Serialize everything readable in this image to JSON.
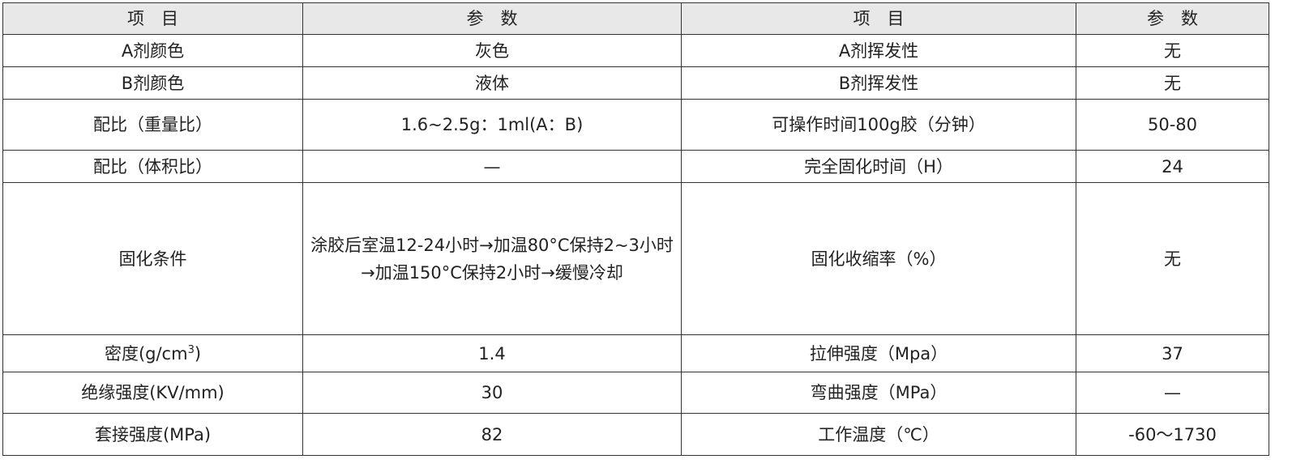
{
  "header": [
    "项　目",
    "参　数",
    "项　目",
    "参　数"
  ],
  "rows": [
    [
      "A剂颜色",
      "灰色",
      "A剂挥发性",
      "无"
    ],
    [
      "B剂颜色",
      "液体",
      "B剂挥发性",
      "无"
    ],
    [
      "配比（重量比）",
      "1.6~2.5g：1ml(A：B)",
      "可操作时间100g胶（分钟）",
      "50-80"
    ],
    [
      "配比（体积比）",
      "—",
      "完全固化时间（H）",
      "24"
    ],
    [
      "固化条件",
      "涂胶后室温12-24小时→加温80°C保持2~3小时→加温150°C保持2小时→缓慢冷却",
      "固化收缩率（%）",
      "无"
    ],
    [
      "密度(g/cm",
      "1.4",
      "拉伸强度（Mpa）",
      "37"
    ],
    [
      "绝缘强度(KV/mm)",
      "30",
      "弯曲强度（MPa）",
      "—"
    ],
    [
      "套接强度(MPa)",
      "82",
      "工作温度（℃）",
      "-60～1730"
    ]
  ],
  "density_sup": "3",
  "density_close": ")"
}
